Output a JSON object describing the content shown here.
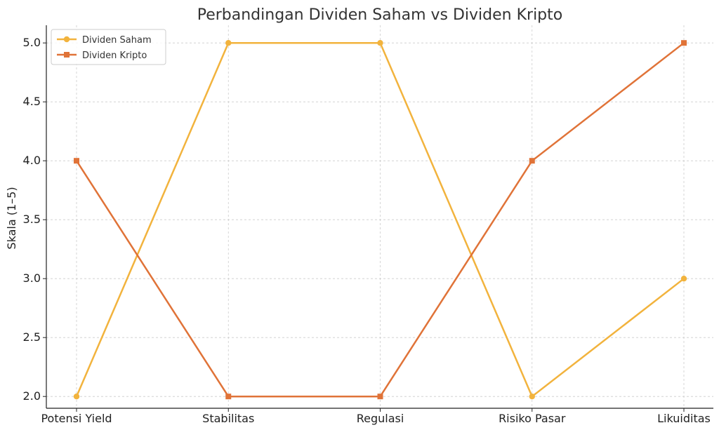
{
  "chart_data": {
    "type": "line",
    "title": "Perbandingan Dividen Saham vs Dividen Kripto",
    "xlabel": "",
    "ylabel": "Skala (1–5)",
    "categories": [
      "Potensi Yield",
      "Stabilitas",
      "Regulasi",
      "Risiko Pasar",
      "Likuiditas"
    ],
    "ylim": [
      1.9,
      5.15
    ],
    "yticks": [
      2.0,
      2.5,
      3.0,
      3.5,
      4.0,
      4.5,
      5.0
    ],
    "ytick_labels": [
      "2.0",
      "2.5",
      "3.0",
      "3.5",
      "4.0",
      "4.5",
      "5.0"
    ],
    "grid": true,
    "legend_position": "top-left",
    "series": [
      {
        "name": "Dividen Saham",
        "values": [
          2,
          5,
          5,
          2,
          3
        ],
        "color": "#f2b33d",
        "marker": "circle"
      },
      {
        "name": "Dividen Kripto",
        "values": [
          4,
          2,
          2,
          4,
          5
        ],
        "color": "#e07338",
        "marker": "square"
      }
    ]
  }
}
